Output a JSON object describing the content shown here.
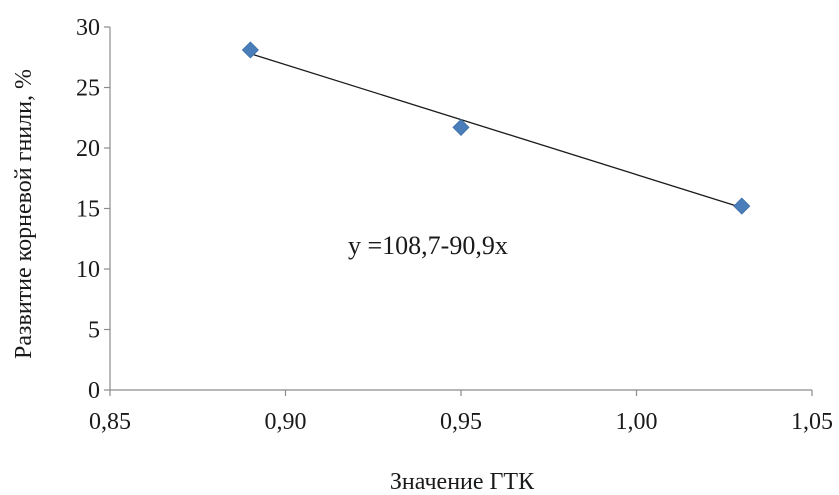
{
  "chart_data": {
    "type": "scatter",
    "xlabel": "Значение ГТК",
    "ylabel": "Развитие корневой гнили, %",
    "xlim": [
      0.85,
      1.05
    ],
    "ylim": [
      0,
      30
    ],
    "x_ticks": [
      "0,85",
      "0,90",
      "0,95",
      "1,00",
      "1,05"
    ],
    "y_ticks": [
      "0",
      "5",
      "10",
      "15",
      "20",
      "25",
      "30"
    ],
    "grid": false,
    "series": [
      {
        "points": [
          {
            "x": 0.89,
            "y": 28.1
          },
          {
            "x": 0.95,
            "y": 21.7
          },
          {
            "x": 1.03,
            "y": 15.2
          }
        ],
        "marker": "diamond",
        "color": "#4a7ebb"
      }
    ],
    "trendline": {
      "equation": "y =108,7-90,9x",
      "intercept": 108.7,
      "slope": -90.9,
      "x_range": [
        0.89,
        1.03
      ],
      "color": "#1a1a1a"
    }
  }
}
